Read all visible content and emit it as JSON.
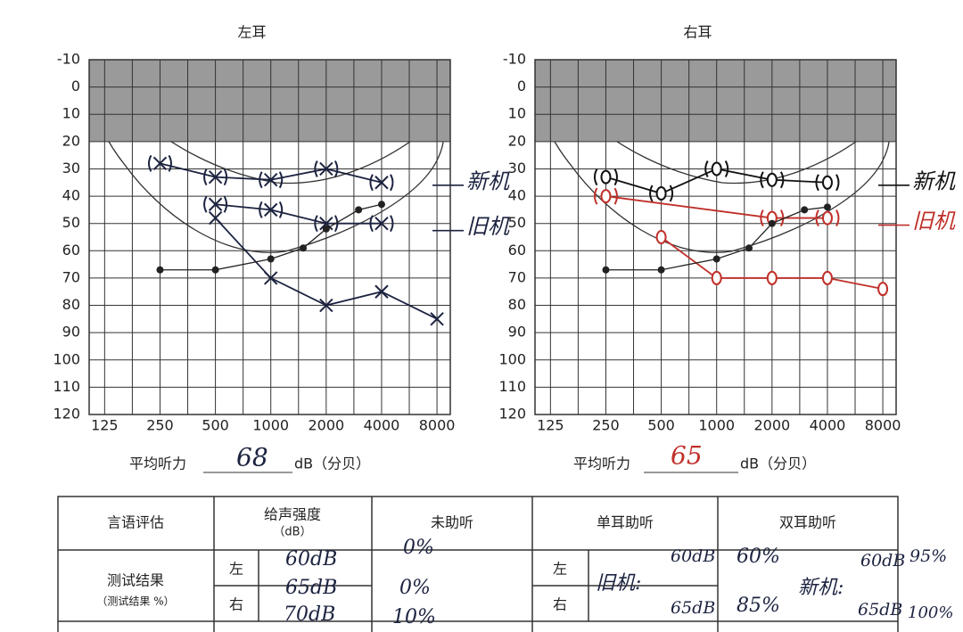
{
  "chart_data": [
    {
      "type": "line",
      "title": "左耳",
      "xlog": true,
      "xlim": [
        103,
        9450
      ],
      "ylim": [
        -10,
        120
      ],
      "xticks": [
        125,
        250,
        500,
        1000,
        2000,
        4000,
        8000
      ],
      "yticks": [
        -10,
        0,
        10,
        20,
        30,
        40,
        50,
        60,
        70,
        80,
        90,
        100,
        110,
        120
      ],
      "shaded": [
        -10,
        20
      ],
      "grid": true,
      "series": [
        {
          "name": "新机",
          "color": "#1c2340",
          "marker": "x",
          "bracket": true,
          "x": [
            250,
            500,
            1000,
            2000,
            4000
          ],
          "values": [
            28,
            33,
            34,
            30,
            35
          ]
        },
        {
          "name": "旧机",
          "color": "#1c2340",
          "marker": "x",
          "bracket": true,
          "x": [
            500,
            1000,
            2000,
            4000
          ],
          "values": [
            43,
            45,
            50,
            50
          ]
        },
        {
          "color": "#1c2340",
          "marker": "x",
          "bracket": false,
          "x": [
            500,
            1000,
            2000,
            4000,
            8000
          ],
          "values": [
            48,
            70,
            80,
            75,
            85
          ]
        },
        {
          "color": "#222222",
          "marker": "dot",
          "bracket": false,
          "x": [
            250,
            500,
            1000,
            1500,
            2000,
            3000,
            4000
          ],
          "values": [
            67,
            67,
            63,
            59,
            52,
            45,
            43
          ]
        }
      ]
    },
    {
      "type": "line",
      "title": "右耳",
      "xlog": true,
      "xlim": [
        103,
        9450
      ],
      "ylim": [
        -10,
        120
      ],
      "xticks": [
        125,
        250,
        500,
        1000,
        2000,
        4000,
        8000
      ],
      "yticks": [
        -10,
        0,
        10,
        20,
        30,
        40,
        50,
        60,
        70,
        80,
        90,
        100,
        110,
        120
      ],
      "shaded": [
        -10,
        20
      ],
      "grid": true,
      "series": [
        {
          "name": "新机",
          "color": "#111111",
          "marker": "o",
          "bracket": true,
          "x": [
            250,
            500,
            1000,
            2000,
            4000
          ],
          "values": [
            33,
            39,
            30,
            34,
            35
          ]
        },
        {
          "name": "旧机",
          "color": "#c0302a",
          "marker": "o",
          "bracket": true,
          "x": [
            250,
            2000,
            4000
          ],
          "values": [
            40,
            48,
            48
          ]
        },
        {
          "color": "#c0302a",
          "marker": "o",
          "bracket": false,
          "x": [
            500,
            1000,
            2000,
            4000,
            8000
          ],
          "values": [
            55,
            70,
            70,
            70,
            74
          ]
        },
        {
          "color": "#222222",
          "marker": "dot",
          "bracket": false,
          "x": [
            250,
            500,
            1000,
            1500,
            2000,
            3000,
            4000
          ],
          "values": [
            67,
            67,
            63,
            59,
            50,
            45,
            44
          ]
        }
      ]
    }
  ],
  "average": {
    "label": "平均听力",
    "unit": "dB（分贝）",
    "left": "68",
    "right": "65"
  },
  "table": {
    "header": {
      "assessment": "言语评估",
      "intensity": "给声强度",
      "intensity_unit": "（dB）",
      "unaided": "未助听",
      "mono": "单耳助听",
      "bi": "双耳助听"
    },
    "row": {
      "label": "测试结果",
      "sublabel": "（测试结果 %）",
      "intensity_sides": [
        "左",
        "右"
      ],
      "mono_sides": [
        "左",
        "右"
      ]
    },
    "handwritten": {
      "intensities": [
        "60dB",
        "65dB",
        "70dB"
      ],
      "unaided": [
        "0%",
        "0%",
        "10%"
      ],
      "mono_label": "旧机:",
      "mono_left": [
        "60dB",
        "60%"
      ],
      "mono_right": [
        "65dB",
        "85%"
      ],
      "bi_label": "新机:",
      "bi_left": [
        "60dB",
        "95%"
      ],
      "bi_right": [
        "65dB",
        "100%"
      ]
    }
  }
}
